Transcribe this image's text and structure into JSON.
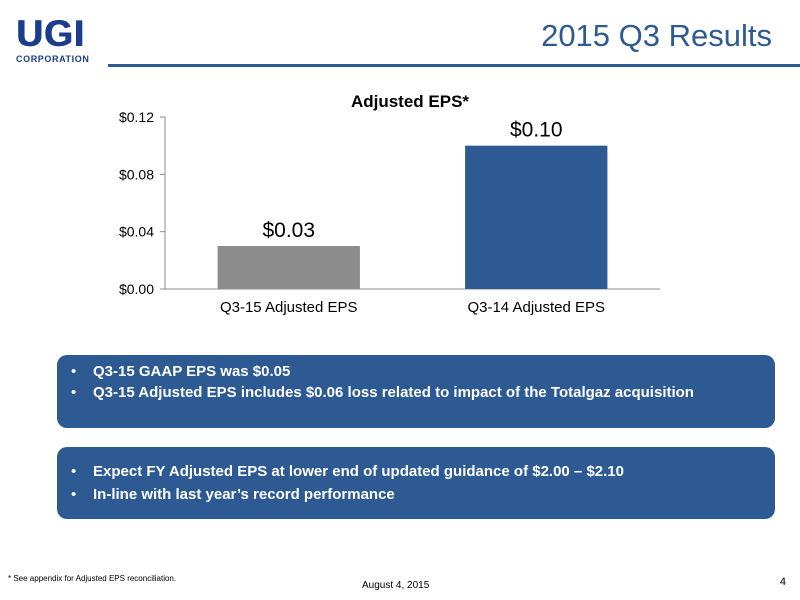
{
  "logo": {
    "letters": "UGI",
    "subtitle": "CORPORATION"
  },
  "header": {
    "title": "2015 Q3 Results"
  },
  "colors": {
    "accent": "#2e5a93",
    "bar_q315": "#8c8c8c",
    "bar_q314": "#2e5a93"
  },
  "chart_data": {
    "type": "bar",
    "title": "Adjusted EPS*",
    "categories": [
      "Q3-15 Adjusted EPS",
      "Q3-14 Adjusted EPS"
    ],
    "values": [
      0.03,
      0.1
    ],
    "data_labels": [
      "$0.03",
      "$0.10"
    ],
    "ylim": [
      0,
      0.12
    ],
    "yticks": [
      0,
      0.04,
      0.08,
      0.12
    ],
    "ytick_labels": [
      "$0.00",
      "$0.04",
      "$0.08",
      "$0.12"
    ],
    "grid": false,
    "legend": "none"
  },
  "callouts": [
    {
      "items": [
        "Q3-15 GAAP EPS was $0.05",
        "Q3-15 Adjusted EPS includes $0.06 loss related to impact of the Totalgaz acquisition"
      ]
    },
    {
      "items": [
        "Expect FY Adjusted EPS at lower end of updated guidance of  $2.00 – $2.10",
        "In-line with last year’s record performance"
      ]
    }
  ],
  "bullet_glyph": "•",
  "footer": {
    "footnote": "* See appendix for Adjusted EPS reconciliation.",
    "date": "August 4, 2015",
    "page_number": "4"
  }
}
